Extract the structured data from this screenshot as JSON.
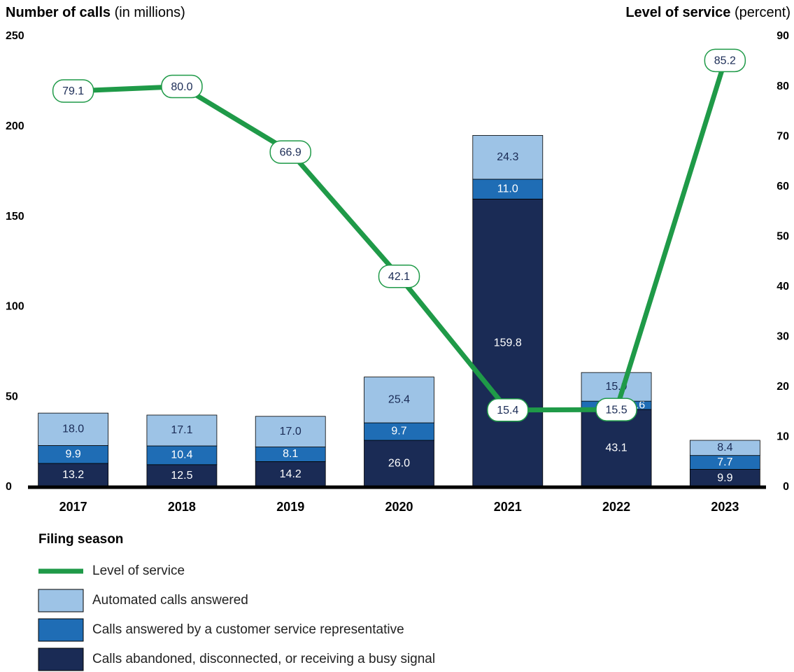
{
  "chart_data": {
    "type": "stacked_bar_line",
    "y_label": "Number of calls",
    "y_label_unit": "(in millions)",
    "y2_label": "Level of service",
    "y2_label_unit": "(percent)",
    "x_label": "Filing season",
    "categories": [
      "2017",
      "2018",
      "2019",
      "2020",
      "2021",
      "2022",
      "2023"
    ],
    "ylim": [
      0,
      250
    ],
    "yticks": [
      0,
      50,
      100,
      150,
      200,
      250
    ],
    "y2lim": [
      0,
      90
    ],
    "y2ticks": [
      0,
      10,
      20,
      30,
      40,
      50,
      60,
      70,
      80,
      90
    ],
    "series": [
      {
        "name": "Calls abandoned, disconnected, or receiving a busy signal",
        "color": "#1a2b55",
        "label_color": "#ffffff",
        "values": [
          13.2,
          12.5,
          14.2,
          26.0,
          159.8,
          43.1,
          9.9
        ],
        "value_labels": [
          "13.2",
          "12.5",
          "14.2",
          "26.0",
          "159.8",
          "43.1",
          "9.9"
        ]
      },
      {
        "name": "Calls answered by a customer service representative",
        "color": "#1f6db5",
        "label_color": "#ffffff",
        "values": [
          9.9,
          10.4,
          8.1,
          9.7,
          11.0,
          4.6,
          7.7
        ],
        "value_labels": [
          "9.9",
          "10.4",
          "8.1",
          "9.7",
          "11.0",
          "4.6",
          "7.7"
        ]
      },
      {
        "name": "Automated calls answered",
        "color": "#9dc3e6",
        "label_color": "#1a2b55",
        "values": [
          18.0,
          17.1,
          17.0,
          25.4,
          24.3,
          15.9,
          8.4
        ],
        "value_labels": [
          "18.0",
          "17.1",
          "17.0",
          "25.4",
          "24.3",
          "15.9",
          "8.4"
        ]
      },
      {
        "name": "Level of service",
        "color": "#1f9a48",
        "axis": "y2",
        "label_color": "#1a2b55",
        "values": [
          79.1,
          80.0,
          66.9,
          42.1,
          15.4,
          15.5,
          85.2
        ],
        "value_labels": [
          "79.1",
          "80.0",
          "66.9",
          "42.1",
          "15.4",
          "15.5",
          "85.2"
        ]
      }
    ]
  }
}
